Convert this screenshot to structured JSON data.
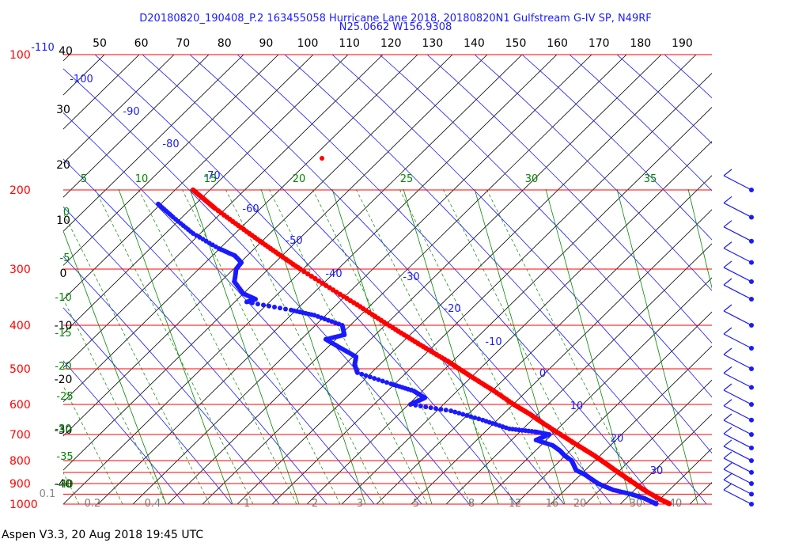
{
  "header": {
    "line1": "D20180820_190408_P.2 163455058 Hurricane Lane 2018, 20180820N1 Gulfstream G-IV SP, N49RF",
    "line2": "N25.0662 W156.9308"
  },
  "footer": "Aspen V3.3, 20 Aug 2018  19:45 UTC",
  "chart_data": {
    "type": "scatter",
    "title": "D20180820_190408_P.2 163455058 Hurricane Lane 2018, 20180820N1 Gulfstream G-IV SP, N49RF",
    "subtitle": "N25.0662 W156.9308",
    "pressure_ticks": [
      "100",
      "200",
      "300",
      "400",
      "500",
      "600",
      "700",
      "800",
      "900",
      "1000"
    ],
    "top_ticks": [
      "50",
      "60",
      "70",
      "80",
      "90",
      "100",
      "110",
      "120",
      "130",
      "140",
      "150",
      "160",
      "170",
      "180",
      "190"
    ],
    "left_black_ticks": [
      "40",
      "30",
      "20",
      "10",
      "0",
      "-10",
      "-20",
      "-30",
      "-40"
    ],
    "dry_adiabat_labels": [
      "-110",
      "-100",
      "-90",
      "-80",
      "-70",
      "-60",
      "-50",
      "-40",
      "-30",
      "-20",
      "-10",
      "0",
      "10",
      "20",
      "30"
    ],
    "moist_adiabat_labels": [
      "5",
      "10",
      "15",
      "20",
      "25",
      "30",
      "35"
    ],
    "green_left_labels": [
      "0",
      "-5",
      "-10",
      "-15",
      "-20",
      "-25",
      "-30",
      "-35",
      "-40"
    ],
    "mixing_ratio_labels": [
      "0.1",
      "0.2",
      "0.4",
      "1",
      "2",
      "3",
      "5",
      "8",
      "12",
      "16",
      "20",
      "30",
      "40"
    ],
    "red_axis_label_color": "#ff0000",
    "blue_color": "#1a1aff",
    "green_color": "#008800",
    "temperature_profile": [
      [
        200,
        -51
      ],
      [
        210,
        -50
      ],
      [
        220,
        -49
      ],
      [
        240,
        -46
      ],
      [
        260,
        -43
      ],
      [
        280,
        -40
      ],
      [
        300,
        -37
      ],
      [
        330,
        -32
      ],
      [
        360,
        -27
      ],
      [
        390,
        -23
      ],
      [
        420,
        -19
      ],
      [
        450,
        -15
      ],
      [
        480,
        -11
      ],
      [
        500,
        -9
      ],
      [
        530,
        -6
      ],
      [
        560,
        -3
      ],
      [
        600,
        0
      ],
      [
        630,
        3
      ],
      [
        660,
        5
      ],
      [
        700,
        8
      ],
      [
        740,
        11
      ],
      [
        780,
        14
      ],
      [
        820,
        16
      ],
      [
        860,
        18
      ],
      [
        900,
        20
      ],
      [
        940,
        22
      ],
      [
        980,
        25
      ],
      [
        1000,
        27
      ]
    ],
    "dewpoint_profile": [
      [
        215,
        -72
      ],
      [
        230,
        -71
      ],
      [
        250,
        -69
      ],
      [
        270,
        -64
      ],
      [
        280,
        -60
      ],
      [
        290,
        -60
      ],
      [
        300,
        -65
      ],
      [
        320,
        -71
      ],
      [
        340,
        -72
      ],
      [
        350,
        -69
      ],
      [
        355,
        -74
      ],
      [
        370,
        -58
      ],
      [
        380,
        -50
      ],
      [
        400,
        -42
      ],
      [
        420,
        -45
      ],
      [
        430,
        -55
      ],
      [
        450,
        -52
      ],
      [
        470,
        -49
      ],
      [
        490,
        -53
      ],
      [
        510,
        -55
      ],
      [
        540,
        -45
      ],
      [
        560,
        -38
      ],
      [
        580,
        -36
      ],
      [
        600,
        -45
      ],
      [
        620,
        -30
      ],
      [
        650,
        -20
      ],
      [
        680,
        -12
      ],
      [
        690,
        -2
      ],
      [
        700,
        3
      ],
      [
        720,
        -5
      ],
      [
        740,
        0
      ],
      [
        760,
        1
      ],
      [
        780,
        1
      ],
      [
        800,
        2
      ],
      [
        820,
        1
      ],
      [
        840,
        0
      ],
      [
        860,
        2
      ],
      [
        880,
        3
      ],
      [
        900,
        4
      ],
      [
        930,
        8
      ],
      [
        950,
        14
      ],
      [
        970,
        18
      ],
      [
        990,
        20
      ],
      [
        1000,
        21
      ]
    ],
    "wind_barbs_at": [
      200,
      230,
      260,
      290,
      320,
      350,
      400,
      450,
      500,
      550,
      600,
      650,
      700,
      750,
      800,
      850,
      900,
      950,
      1000
    ]
  }
}
